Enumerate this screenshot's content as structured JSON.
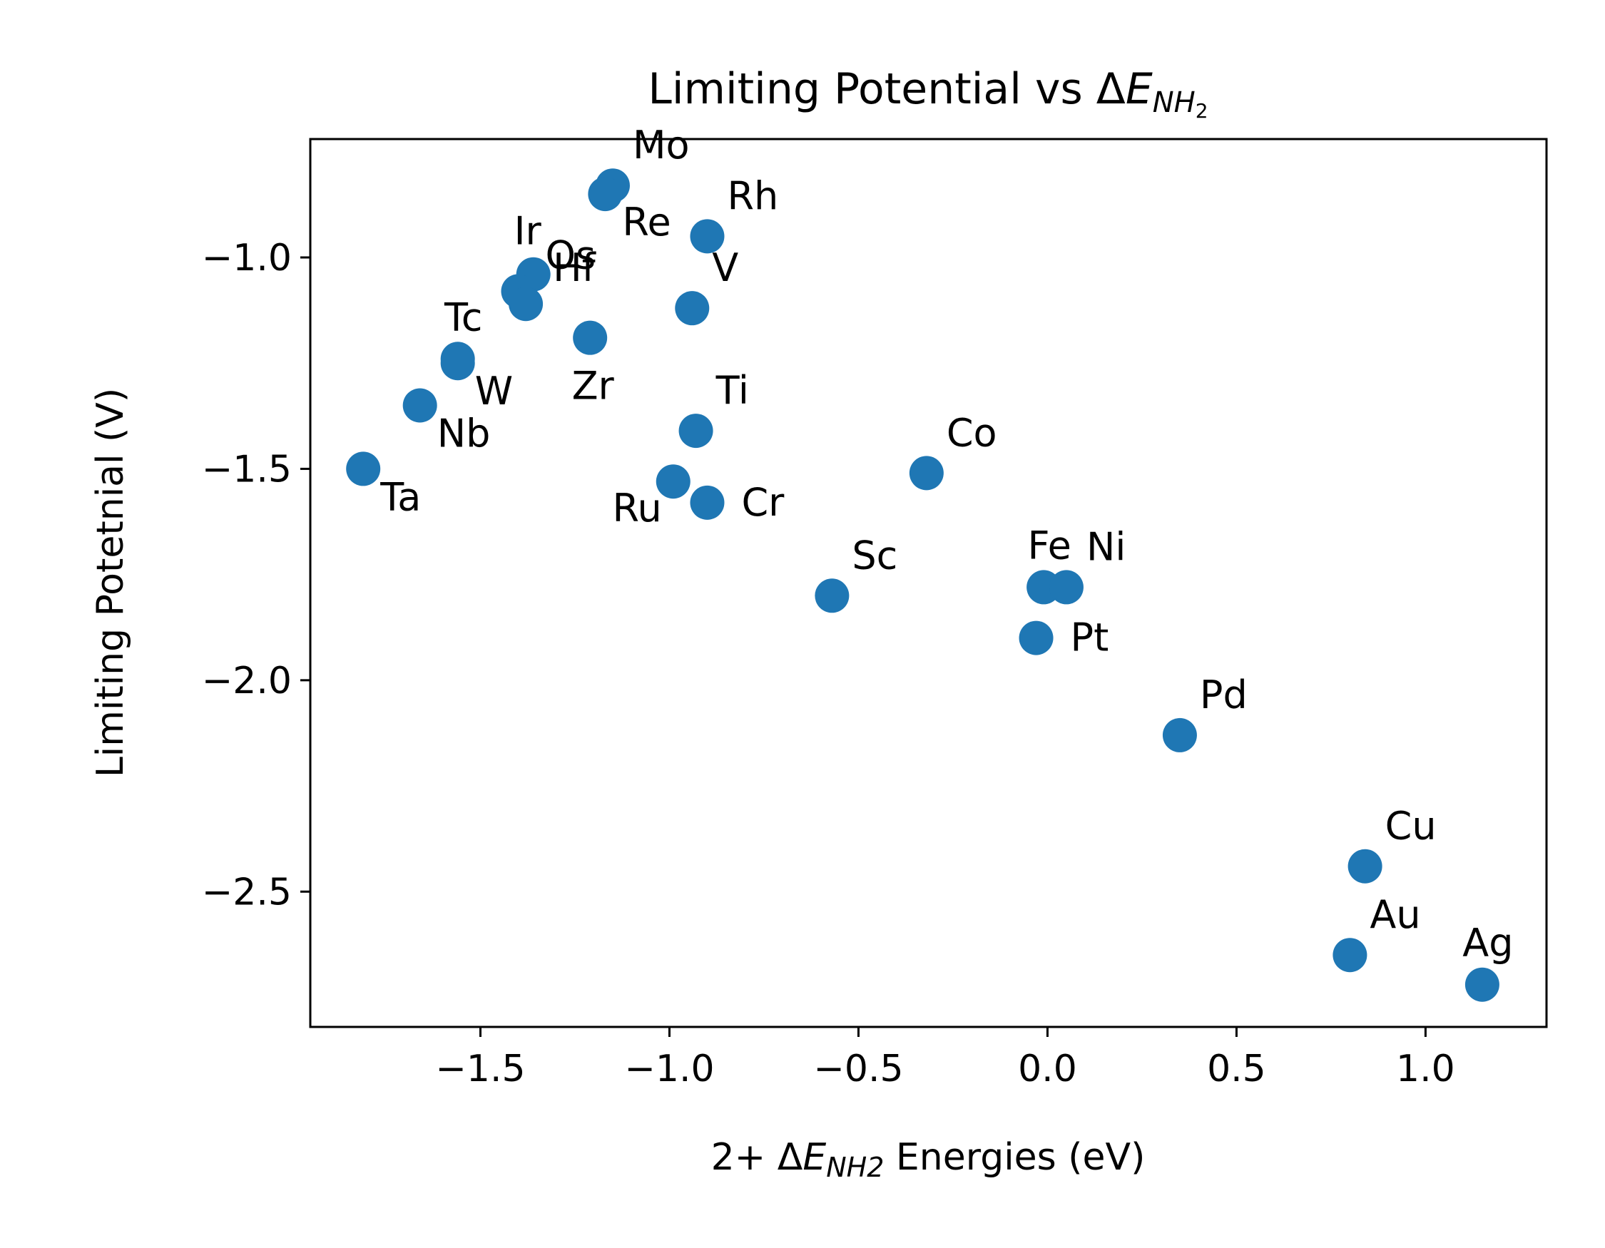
{
  "chart_data": {
    "type": "scatter",
    "title": {
      "text": "Limiting Potential vs ",
      "delta": "Δ",
      "var": "E",
      "sub": "NH",
      "subsub": "2"
    },
    "xlabel": {
      "prefix": "2+  ",
      "delta": "Δ",
      "var": "E",
      "sub": "NH2",
      "suffix": " Energies (eV)"
    },
    "ylabel": "Limiting Potetnial (V)",
    "xlim": [
      -1.95,
      1.32
    ],
    "ylim": [
      -2.82,
      -0.72
    ],
    "xticks": [
      -1.5,
      -1.0,
      -0.5,
      0.0,
      0.5,
      1.0
    ],
    "xtick_labels": [
      "−1.5",
      "−1.0",
      "−0.5",
      "0.0",
      "0.5",
      "1.0"
    ],
    "yticks": [
      -1.0,
      -1.5,
      -2.0,
      -2.5
    ],
    "ytick_labels": [
      "−1.0",
      "−1.5",
      "−2.0",
      "−2.5"
    ],
    "grid": false,
    "marker_color": "#1f77b4",
    "points": [
      {
        "label": "Mo",
        "x": -1.15,
        "y": -0.83,
        "label_pos": "upper-right"
      },
      {
        "label": "Re",
        "x": -1.17,
        "y": -0.85,
        "label_pos": "lower-right"
      },
      {
        "label": "Rh",
        "x": -0.9,
        "y": -0.95,
        "label_pos": "upper-right"
      },
      {
        "label": "Ir",
        "x": -1.36,
        "y": -1.04,
        "label_pos": "upper-left"
      },
      {
        "label": "Os",
        "x": -1.4,
        "y": -1.08,
        "label_pos": "upper-right-far"
      },
      {
        "label": "Hf",
        "x": -1.38,
        "y": -1.11,
        "label_pos": "upper-right-far"
      },
      {
        "label": "V",
        "x": -0.94,
        "y": -1.12,
        "label_pos": "upper-right"
      },
      {
        "label": "Zr",
        "x": -1.21,
        "y": -1.19,
        "label_pos": "lower-center"
      },
      {
        "label": "Tc",
        "x": -1.56,
        "y": -1.24,
        "label_pos": "upper-center"
      },
      {
        "label": "W",
        "x": -1.56,
        "y": -1.25,
        "label_pos": "lower-right"
      },
      {
        "label": "Nb",
        "x": -1.66,
        "y": -1.35,
        "label_pos": "lower-right"
      },
      {
        "label": "Ti",
        "x": -0.93,
        "y": -1.41,
        "label_pos": "upper-right"
      },
      {
        "label": "Ta",
        "x": -1.81,
        "y": -1.5,
        "label_pos": "lower-right"
      },
      {
        "label": "Ru",
        "x": -0.99,
        "y": -1.53,
        "label_pos": "lower-left"
      },
      {
        "label": "Cr",
        "x": -0.9,
        "y": -1.58,
        "label_pos": "right"
      },
      {
        "label": "Co",
        "x": -0.32,
        "y": -1.51,
        "label_pos": "upper-right"
      },
      {
        "label": "Sc",
        "x": -0.57,
        "y": -1.8,
        "label_pos": "upper-right"
      },
      {
        "label": "Fe",
        "x": -0.01,
        "y": -1.78,
        "label_pos": "upper-center"
      },
      {
        "label": "Ni",
        "x": 0.05,
        "y": -1.78,
        "label_pos": "upper-right"
      },
      {
        "label": "Pt",
        "x": -0.03,
        "y": -1.9,
        "label_pos": "right"
      },
      {
        "label": "Pd",
        "x": 0.35,
        "y": -2.13,
        "label_pos": "upper-right"
      },
      {
        "label": "Cu",
        "x": 0.84,
        "y": -2.44,
        "label_pos": "upper-right"
      },
      {
        "label": "Au",
        "x": 0.8,
        "y": -2.65,
        "label_pos": "upper-right"
      },
      {
        "label": "Ag",
        "x": 1.15,
        "y": -2.72,
        "label_pos": "upper-center"
      }
    ]
  }
}
